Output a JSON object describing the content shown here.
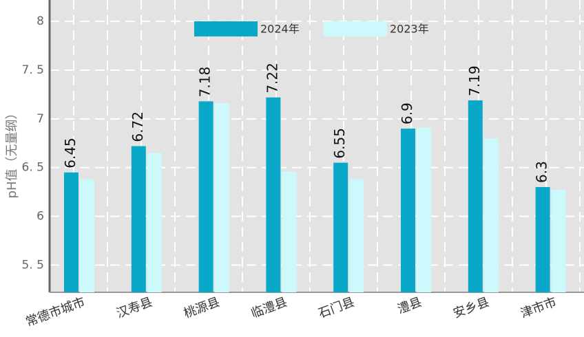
{
  "chart_data": {
    "type": "bar",
    "y_label": "pH值（无量纲）",
    "categories": [
      "常德市城市",
      "汉寿县",
      "桃源县",
      "临澧县",
      "石门县",
      "澧县",
      "安乡县",
      "津市市"
    ],
    "series": [
      {
        "name": "2024年",
        "color": "#0aa8c8",
        "values": [
          6.45,
          6.72,
          7.18,
          7.22,
          6.55,
          6.9,
          7.19,
          6.3
        ]
      },
      {
        "name": "2023年",
        "color": "#ccf9fb",
        "values": [
          6.38,
          6.65,
          7.16,
          6.46,
          6.38,
          6.91,
          6.8,
          6.27
        ]
      }
    ],
    "ylim": [
      5.22,
      8.22
    ],
    "yticks": [
      {
        "value": 5.5,
        "label": "5. 5"
      },
      6,
      {
        "value": 6.5,
        "label": "6. 5"
      },
      7,
      {
        "value": 7.5,
        "label": "7. 5"
      },
      8
    ],
    "grid": true
  }
}
